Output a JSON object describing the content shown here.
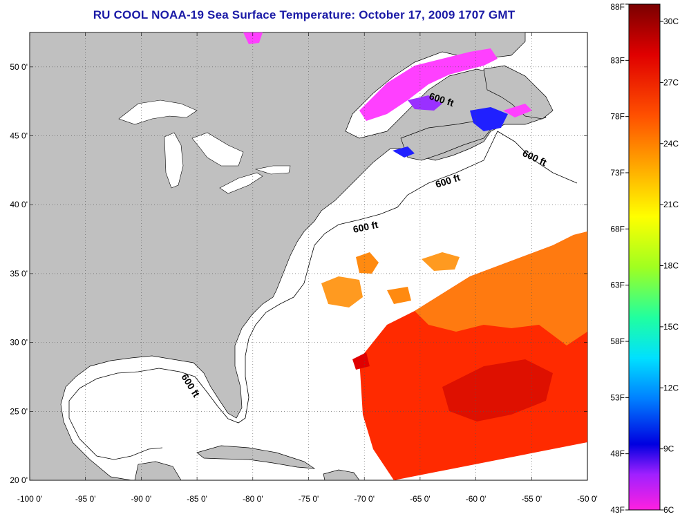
{
  "title": "RU COOL  NOAA-19  Sea Surface Temperature:  October 17, 2009 1707 GMT",
  "lat_labels": [
    "50 0'",
    "45 0'",
    "40 0'",
    "35 0'",
    "30 0'",
    "25 0'",
    "20 0'"
  ],
  "lon_labels": [
    "-100 0'",
    "-95 0'",
    "-90 0'",
    "-85 0'",
    "-80 0'",
    "-75 0'",
    "-70 0'",
    "-65 0'",
    "-60 0'",
    "-55 0'",
    "-50 0'"
  ],
  "isobath_label": "600 ft",
  "colorbar": {
    "fahrenheit": [
      "88F",
      "83F",
      "78F",
      "73F",
      "68F",
      "63F",
      "58F",
      "53F",
      "48F",
      "43F"
    ],
    "celsius": [
      "30C",
      "27C",
      "24C",
      "21C",
      "18C",
      "15C",
      "12C",
      "9C",
      "6C"
    ],
    "colors": [
      "#8b0000",
      "#ff0000",
      "#ff8000",
      "#ffff00",
      "#80ff00",
      "#00ff80",
      "#00ffff",
      "#0080ff",
      "#0000ff",
      "#8000ff",
      "#ff00ff"
    ]
  },
  "colors": {
    "land": "#c0c0c0",
    "ocean_no_data": "#ffffff",
    "title": "#1a1aa6",
    "sst_warm": "#ff2a00",
    "sst_orange": "#ff8c1a",
    "sst_cold": "#ff40ff"
  }
}
